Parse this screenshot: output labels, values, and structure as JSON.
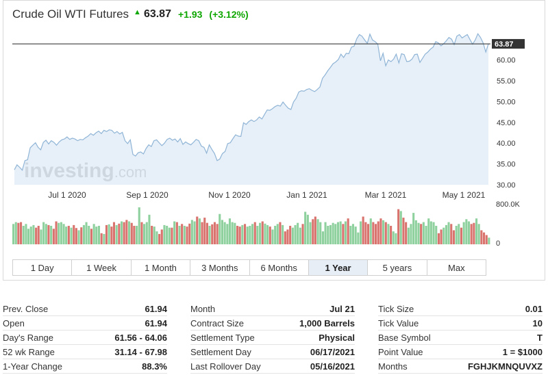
{
  "header": {
    "title": "Crude Oil WTI Futures",
    "price": "63.87",
    "change": "+1.93",
    "change_pct": "(+3.12%)",
    "up_color": "#0ea600"
  },
  "chart_data": {
    "type": "area",
    "title": "",
    "xlabel": "",
    "ylabel": "",
    "watermark": "investing.com",
    "x_ticks": [
      "Jul 1 2020",
      "Sep 1 2020",
      "Nov 1 2020",
      "Jan 1 2021",
      "Mar 1 2021",
      "May 1 2021"
    ],
    "y_ticks": [
      "30.00",
      "35.00",
      "40.00",
      "45.00",
      "50.00",
      "55.00",
      "60.00"
    ],
    "ylim": [
      30,
      67.5
    ],
    "last_price_label": "63.87",
    "last_price": 63.87,
    "line_color": "#8fb4d6",
    "fill_color": "#e3edf7",
    "series": [
      {
        "values": [
          33.6,
          34.8,
          34.2,
          33.5,
          35.8,
          36.0,
          38.9,
          39.5,
          40.1,
          39.0,
          38.4,
          40.2,
          40.7,
          39.8,
          40.6,
          40.2,
          39.5,
          40.3,
          40.8,
          41.0,
          41.5,
          40.9,
          41.2,
          41.0,
          40.6,
          40.9,
          40.8,
          41.3,
          41.7,
          42.3,
          41.9,
          42.5,
          42.9,
          42.3,
          43.1,
          42.8,
          43.2,
          43.1,
          42.4,
          42.8,
          42.2,
          42.6,
          40.6,
          39.9,
          40.8,
          37.3,
          36.9,
          37.7,
          37.9,
          37.4,
          38.7,
          39.6,
          39.2,
          40.6,
          40.8,
          40.1,
          39.4,
          40.0,
          40.9,
          41.2,
          40.7,
          41.0,
          40.3,
          41.1,
          39.7,
          40.3,
          39.9,
          39.6,
          40.2,
          40.9,
          40.6,
          39.3,
          39.0,
          37.6,
          39.6,
          38.5,
          37.5,
          35.8,
          36.2,
          37.5,
          38.0,
          39.9,
          40.1,
          41.1,
          42.0,
          41.7,
          41.6,
          44.9,
          44.5,
          45.2,
          45.6,
          45.2,
          45.6,
          46.3,
          45.8,
          46.9,
          48.0,
          47.9,
          48.3,
          48.8,
          49.1,
          48.9,
          49.9,
          49.1,
          48.4,
          48.1,
          49.9,
          50.8,
          52.3,
          52.6,
          52.5,
          52.9,
          53.1,
          52.7,
          52.4,
          52.9,
          53.5,
          55.6,
          56.4,
          57.4,
          58.2,
          59.1,
          59.5,
          60.1,
          61.4,
          60.6,
          61.6,
          61.5,
          63.1,
          63.3,
          65.1,
          66.1,
          65.7,
          64.8,
          64.0,
          66.2,
          64.8,
          64.4,
          63.8,
          59.8,
          61.6,
          58.6,
          60.0,
          59.6,
          60.2,
          61.4,
          59.3,
          61.5,
          61.3,
          59.6,
          59.7,
          60.2,
          61.3,
          61.4,
          59.4,
          60.4,
          61.4,
          61.9,
          62.6,
          63.1,
          64.4,
          64.1,
          63.4,
          63.9,
          64.6,
          65.4,
          65.0,
          63.7,
          65.7,
          66.1,
          65.3,
          65.7,
          66.1,
          64.9,
          63.8,
          64.8,
          66.3,
          65.4,
          64.1,
          61.9,
          63.87
        ]
      }
    ],
    "volume": {
      "axis_top_label": "800.0K",
      "axis_bottom_label": "0",
      "up_color": "#8fd19e",
      "down_color": "#d9736e",
      "values": [
        0.55,
        0.6,
        0.58,
        0.6,
        0.5,
        0.55,
        0.42,
        0.48,
        0.52,
        0.45,
        0.5,
        0.4,
        0.6,
        0.55,
        0.52,
        0.5,
        0.42,
        0.62,
        0.58,
        0.6,
        0.55,
        0.48,
        0.5,
        0.45,
        0.52,
        0.44,
        0.38,
        0.46,
        0.52,
        0.6,
        0.5,
        0.42,
        0.55,
        0.48,
        0.5,
        0.3,
        0.28,
        0.52,
        0.54,
        0.48,
        0.6,
        0.52,
        0.56,
        0.62,
        0.6,
        0.66,
        0.62,
        0.58,
        0.5,
        0.5,
        1.0,
        0.6,
        0.55,
        0.6,
        0.8,
        0.5,
        0.48,
        0.35,
        0.28,
        0.4,
        0.52,
        0.5,
        0.45,
        0.45,
        0.62,
        0.6,
        0.5,
        0.55,
        0.5,
        0.48,
        0.56,
        0.66,
        0.62,
        0.75,
        0.7,
        0.6,
        0.72,
        0.58,
        0.5,
        0.54,
        0.6,
        0.55,
        0.82,
        0.66,
        0.6,
        0.55,
        0.7,
        0.6,
        0.58,
        0.5,
        0.48,
        0.52,
        0.55,
        0.48,
        0.5,
        0.55,
        0.6,
        0.5,
        0.58,
        0.62,
        0.56,
        0.52,
        0.48,
        0.4,
        0.5,
        0.55,
        0.6,
        0.52,
        0.35,
        0.4,
        0.5,
        0.45,
        0.52,
        0.58,
        0.45,
        0.55,
        0.88,
        0.8,
        0.6,
        0.68,
        0.75,
        0.68,
        0.6,
        0.35,
        0.6,
        0.5,
        0.52,
        0.58,
        0.55,
        0.6,
        0.62,
        0.55,
        0.62,
        0.7,
        0.5,
        0.55,
        0.48,
        0.32,
        0.62,
        0.75,
        0.6,
        0.55,
        0.7,
        0.6,
        0.55,
        0.62,
        0.7,
        0.65,
        0.6,
        0.55,
        0.5,
        0.35,
        0.3,
        0.95,
        0.9,
        0.72,
        0.6,
        0.45,
        0.55,
        0.85,
        0.65,
        0.58,
        0.55,
        0.6,
        0.5,
        0.7,
        0.62,
        0.6,
        0.5,
        0.3,
        0.4,
        0.45,
        0.52,
        0.6,
        0.55,
        0.38,
        0.5,
        0.55,
        0.45,
        0.6,
        0.68,
        0.62,
        0.55,
        0.58,
        0.7,
        0.55,
        0.38,
        0.32,
        0.25,
        0.18
      ]
    }
  },
  "tabs": [
    {
      "label": "1 Day"
    },
    {
      "label": "1 Week"
    },
    {
      "label": "1 Month"
    },
    {
      "label": "3 Months"
    },
    {
      "label": "6 Months"
    },
    {
      "label": "1 Year",
      "active": true
    },
    {
      "label": "5 years"
    },
    {
      "label": "Max"
    }
  ],
  "stats": {
    "col1": [
      {
        "label": "Prev. Close",
        "value": "61.94"
      },
      {
        "label": "Open",
        "value": "61.94"
      },
      {
        "label": "Day's Range",
        "value": "61.56 - 64.06"
      },
      {
        "label": "52 wk Range",
        "value": "31.14 - 67.98"
      },
      {
        "label": "1-Year Change",
        "value": "88.3%"
      }
    ],
    "col2": [
      {
        "label": "Month",
        "value": "Jul 21"
      },
      {
        "label": "Contract Size",
        "value": "1,000 Barrels"
      },
      {
        "label": "Settlement Type",
        "value": "Physical"
      },
      {
        "label": "Settlement Day",
        "value": "06/17/2021"
      },
      {
        "label": "Last Rollover Day",
        "value": "05/16/2021"
      }
    ],
    "col3": [
      {
        "label": "Tick Size",
        "value": "0.01"
      },
      {
        "label": "Tick Value",
        "value": "10"
      },
      {
        "label": "Base Symbol",
        "value": "T"
      },
      {
        "label": "Point Value",
        "value": "1 = $1000"
      },
      {
        "label": "Months",
        "value": "FGHJKMNQUVXZ"
      }
    ]
  }
}
